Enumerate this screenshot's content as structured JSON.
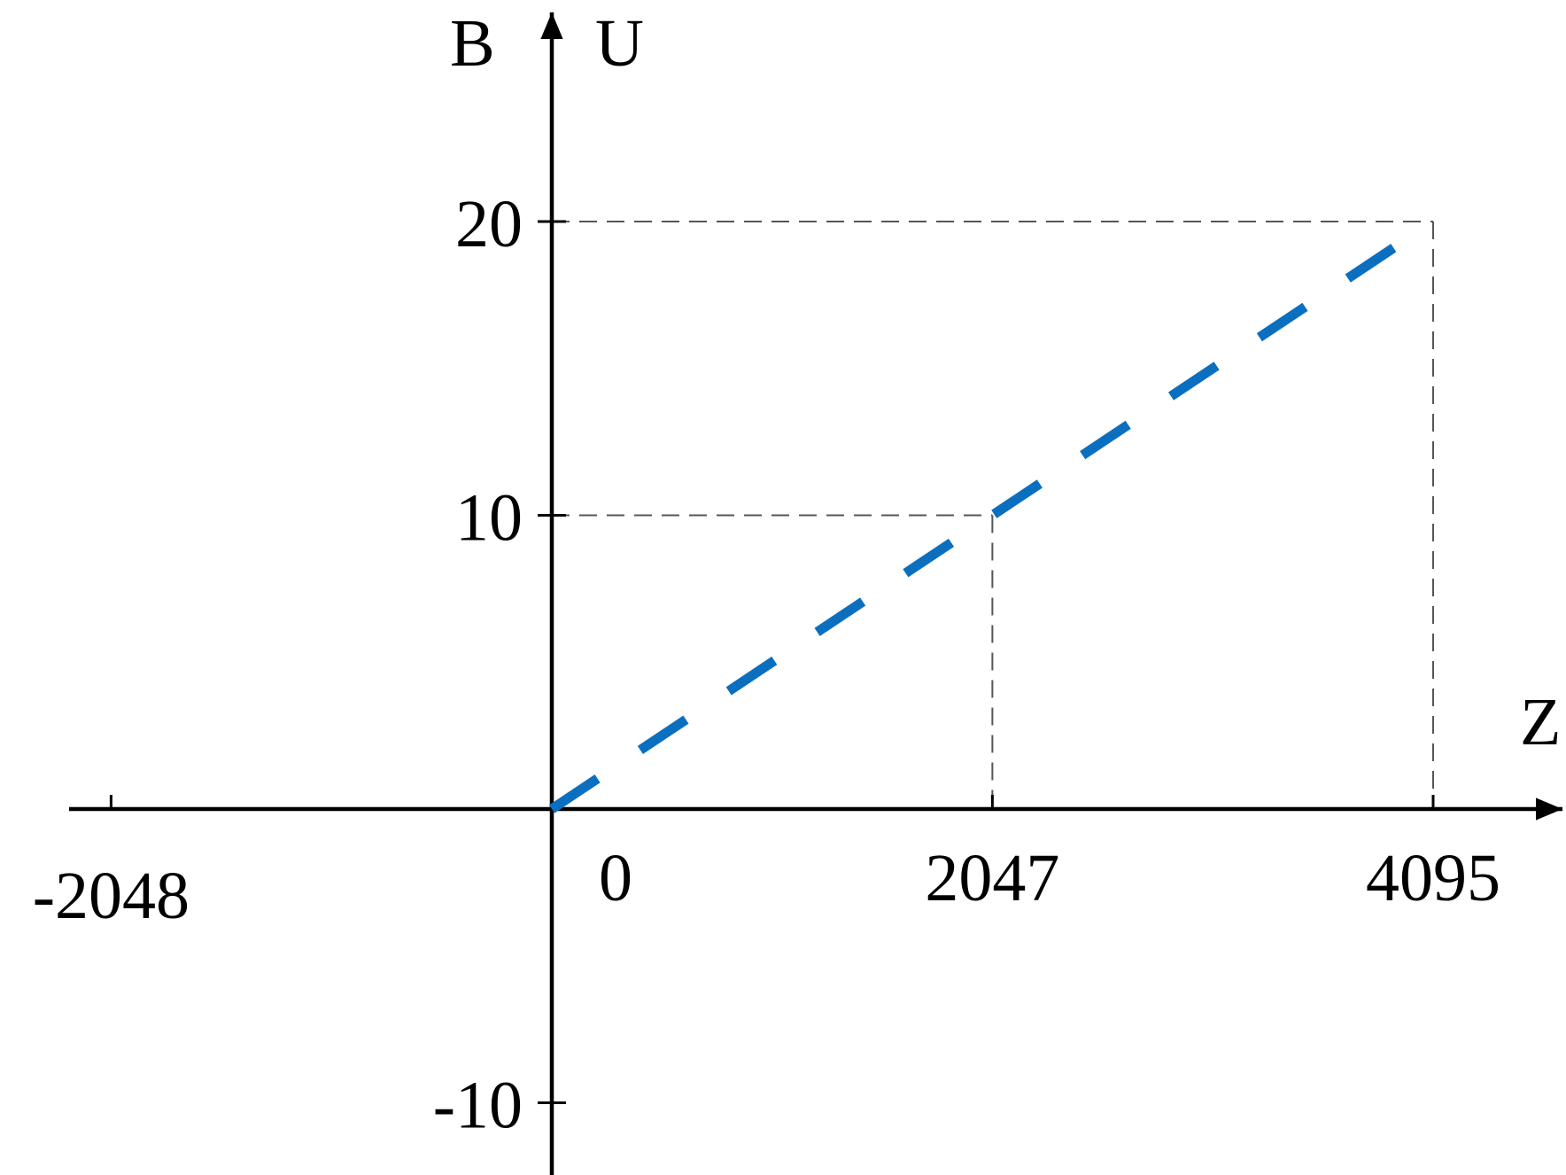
{
  "chart_data": {
    "type": "line",
    "title": "",
    "axes": {
      "x": {
        "label": "Z",
        "ticks": [
          -2048,
          0,
          2047,
          4095
        ],
        "tick_labels": [
          "-2048",
          "0",
          "2047",
          "4095"
        ]
      },
      "y": {
        "labels": [
          "B",
          "U"
        ],
        "ticks": [
          -10,
          10,
          20
        ],
        "tick_labels": [
          "-10",
          "10",
          "20"
        ]
      }
    },
    "series": [
      {
        "style": "dashed",
        "x": [
          0,
          2047,
          4095
        ],
        "y": [
          0,
          10,
          20
        ]
      }
    ],
    "reference_lines": [
      {
        "from": [
          0,
          20
        ],
        "to": [
          4095,
          20
        ]
      },
      {
        "from": [
          4095,
          20
        ],
        "to": [
          4095,
          0
        ]
      },
      {
        "from": [
          0,
          10
        ],
        "to": [
          2047,
          10
        ]
      },
      {
        "from": [
          2047,
          10
        ],
        "to": [
          2047,
          0
        ]
      }
    ],
    "grid": false,
    "colors": {
      "series": "#0b6fc0",
      "axes": "#000000",
      "reference": "#555555"
    }
  }
}
